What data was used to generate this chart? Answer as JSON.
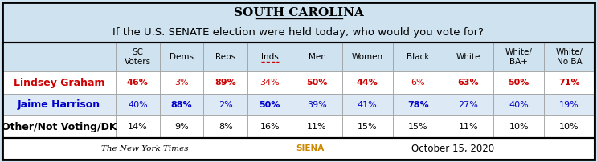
{
  "title": "SOUTH CAROLINA",
  "subtitle": "If the U.S. SENATE election were held today, who would you vote for?",
  "bg_color": "#cfe2f0",
  "col_headers": [
    "SC\nVoters",
    "Dems",
    "Reps",
    "Inds",
    "Men",
    "Women",
    "Black",
    "White",
    "White/\nBA+",
    "White/\nNo BA"
  ],
  "row_labels": [
    "Lindsey Graham",
    "Jaime Harrison",
    "Other/Not Voting/DK"
  ],
  "row_label_colors": [
    "#cc0000",
    "#0000cc",
    "#000000"
  ],
  "row_label_bold": [
    true,
    true,
    true
  ],
  "data": [
    [
      "46%",
      "3%",
      "89%",
      "34%",
      "50%",
      "44%",
      "6%",
      "63%",
      "50%",
      "71%"
    ],
    [
      "40%",
      "88%",
      "2%",
      "50%",
      "39%",
      "41%",
      "78%",
      "27%",
      "40%",
      "19%"
    ],
    [
      "14%",
      "9%",
      "8%",
      "16%",
      "11%",
      "15%",
      "15%",
      "11%",
      "10%",
      "10%"
    ]
  ],
  "bold_cols_row0": [
    0,
    2,
    4,
    5,
    7,
    8,
    9
  ],
  "bold_cols_row1": [
    1,
    3,
    6
  ],
  "bold_cols_row2": [],
  "data_colors_row0": [
    "#cc0000",
    "#cc0000",
    "#cc0000",
    "#cc0000",
    "#cc0000",
    "#cc0000",
    "#cc0000",
    "#cc0000",
    "#cc0000",
    "#cc0000"
  ],
  "data_colors_row1": [
    "#0000cc",
    "#0000cc",
    "#0000cc",
    "#0000cc",
    "#0000cc",
    "#0000cc",
    "#0000cc",
    "#0000cc",
    "#0000cc",
    "#0000cc"
  ],
  "data_colors_row2": [
    "#000000",
    "#000000",
    "#000000",
    "#000000",
    "#000000",
    "#000000",
    "#000000",
    "#000000",
    "#000000",
    "#000000"
  ],
  "row_bg_colors": [
    "#ffffff",
    "#ddeaf5",
    "#ffffff"
  ],
  "header_row_bg": "#cfe2f0",
  "footer_nyt": "The New York Times",
  "footer_date": "October 15, 2020",
  "col_widths_rel": [
    1.75,
    0.68,
    0.68,
    0.68,
    0.68,
    0.78,
    0.78,
    0.78,
    0.78,
    0.78,
    0.78
  ],
  "title_fontsize": 11,
  "subtitle_fontsize": 9.5,
  "header_fontsize": 7.5,
  "data_fontsize": 8.0,
  "label_fontsize": 9.0
}
